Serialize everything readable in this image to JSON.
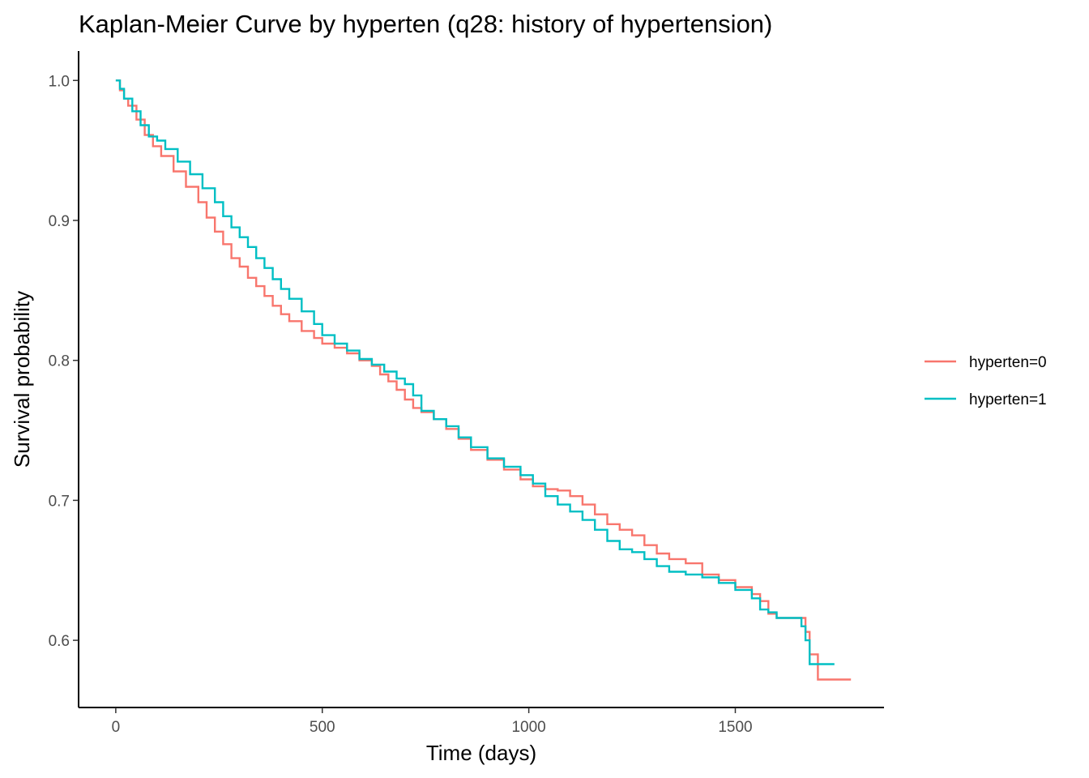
{
  "chart_data": {
    "type": "line",
    "step": true,
    "title": "Kaplan-Meier Curve by hyperten (q28: history of hypertension)",
    "xlabel": "Time (days)",
    "ylabel": "Survival probability",
    "xlim": [
      -90,
      1860
    ],
    "ylim": [
      0.552,
      1.021
    ],
    "xticks": [
      0,
      500,
      1000,
      1500
    ],
    "yticks": [
      0.6,
      0.7,
      0.8,
      0.9,
      1.0
    ],
    "xtick_labels": [
      "0",
      "500",
      "1000",
      "1500"
    ],
    "ytick_labels": [
      "0.6",
      "0.7",
      "0.8",
      "0.9",
      "1.0"
    ],
    "grid": false,
    "legend_position": "right",
    "series": [
      {
        "name": "hyperten=0",
        "color": "#F8766D",
        "x": [
          0,
          10,
          20,
          30,
          50,
          70,
          90,
          110,
          140,
          170,
          200,
          220,
          240,
          260,
          280,
          300,
          320,
          340,
          360,
          380,
          400,
          420,
          450,
          480,
          500,
          530,
          560,
          590,
          620,
          640,
          660,
          680,
          700,
          720,
          740,
          770,
          800,
          830,
          860,
          900,
          940,
          980,
          1010,
          1040,
          1070,
          1100,
          1130,
          1160,
          1190,
          1220,
          1250,
          1280,
          1310,
          1340,
          1380,
          1420,
          1460,
          1500,
          1540,
          1560,
          1580,
          1600,
          1620,
          1640,
          1660,
          1670,
          1680,
          1700,
          1780
        ],
        "y": [
          1.0,
          0.993,
          0.987,
          0.982,
          0.972,
          0.961,
          0.953,
          0.946,
          0.935,
          0.924,
          0.913,
          0.902,
          0.892,
          0.883,
          0.873,
          0.867,
          0.859,
          0.853,
          0.846,
          0.839,
          0.833,
          0.828,
          0.821,
          0.816,
          0.812,
          0.809,
          0.805,
          0.8,
          0.796,
          0.79,
          0.785,
          0.779,
          0.772,
          0.766,
          0.763,
          0.758,
          0.751,
          0.744,
          0.736,
          0.729,
          0.722,
          0.715,
          0.71,
          0.708,
          0.707,
          0.703,
          0.697,
          0.69,
          0.683,
          0.679,
          0.675,
          0.668,
          0.662,
          0.658,
          0.655,
          0.647,
          0.643,
          0.638,
          0.633,
          0.628,
          0.619,
          0.616,
          0.616,
          0.616,
          0.616,
          0.606,
          0.59,
          0.572,
          0.572
        ]
      },
      {
        "name": "hyperten=1",
        "color": "#00BFC4",
        "x": [
          0,
          10,
          20,
          40,
          60,
          80,
          100,
          120,
          150,
          180,
          210,
          240,
          260,
          280,
          300,
          320,
          340,
          360,
          380,
          400,
          420,
          450,
          480,
          500,
          530,
          560,
          590,
          620,
          650,
          680,
          700,
          720,
          740,
          770,
          800,
          830,
          860,
          900,
          940,
          980,
          1010,
          1040,
          1070,
          1100,
          1130,
          1160,
          1190,
          1220,
          1250,
          1280,
          1310,
          1340,
          1380,
          1420,
          1460,
          1500,
          1540,
          1560,
          1580,
          1600,
          1620,
          1640,
          1660,
          1670,
          1680,
          1700,
          1740
        ],
        "y": [
          1.0,
          0.994,
          0.987,
          0.978,
          0.968,
          0.96,
          0.957,
          0.951,
          0.942,
          0.933,
          0.923,
          0.913,
          0.903,
          0.895,
          0.888,
          0.881,
          0.873,
          0.866,
          0.858,
          0.851,
          0.844,
          0.835,
          0.826,
          0.818,
          0.812,
          0.807,
          0.801,
          0.797,
          0.792,
          0.787,
          0.783,
          0.775,
          0.764,
          0.758,
          0.753,
          0.745,
          0.738,
          0.73,
          0.724,
          0.718,
          0.712,
          0.703,
          0.697,
          0.692,
          0.686,
          0.679,
          0.671,
          0.665,
          0.663,
          0.658,
          0.653,
          0.649,
          0.647,
          0.645,
          0.641,
          0.636,
          0.63,
          0.622,
          0.62,
          0.616,
          0.616,
          0.616,
          0.61,
          0.6,
          0.583,
          0.583,
          0.583
        ]
      }
    ]
  }
}
